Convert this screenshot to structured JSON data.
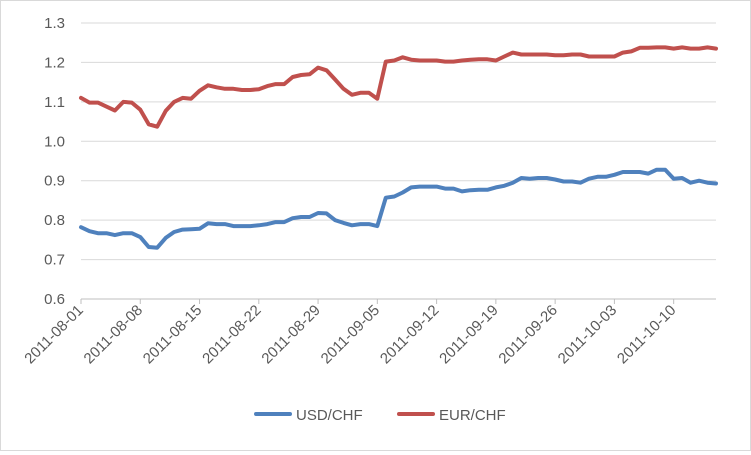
{
  "chart_data": {
    "type": "line",
    "title": "",
    "xlabel": "",
    "ylabel": "",
    "ylim": [
      0.6,
      1.3
    ],
    "yticks": [
      "0.6",
      "0.7",
      "0.8",
      "0.9",
      "1.0",
      "1.1",
      "1.2",
      "1.3"
    ],
    "xtick_labels": [
      "2011-08-01",
      "2011-08-08",
      "2011-08-15",
      "2011-08-22",
      "2011-08-29",
      "2011-09-05",
      "2011-09-12",
      "2011-09-19",
      "2011-09-26",
      "2011-10-03",
      "2011-10-10"
    ],
    "grid": "horizontal",
    "legend_position": "bottom",
    "series": [
      {
        "name": "USD/CHF",
        "color": "#4f81bd",
        "values": [
          0.782,
          0.772,
          0.767,
          0.767,
          0.762,
          0.767,
          0.767,
          0.757,
          0.732,
          0.73,
          0.755,
          0.77,
          0.776,
          0.777,
          0.778,
          0.792,
          0.79,
          0.79,
          0.785,
          0.785,
          0.785,
          0.787,
          0.79,
          0.795,
          0.795,
          0.805,
          0.808,
          0.808,
          0.818,
          0.817,
          0.8,
          0.793,
          0.787,
          0.79,
          0.79,
          0.785,
          0.857,
          0.86,
          0.87,
          0.883,
          0.885,
          0.885,
          0.885,
          0.88,
          0.88,
          0.873,
          0.876,
          0.877,
          0.877,
          0.883,
          0.887,
          0.895,
          0.907,
          0.905,
          0.907,
          0.907,
          0.903,
          0.898,
          0.898,
          0.895,
          0.905,
          0.91,
          0.91,
          0.915,
          0.922,
          0.922,
          0.922,
          0.918,
          0.928,
          0.928,
          0.905,
          0.907,
          0.895,
          0.9,
          0.895,
          0.893
        ]
      },
      {
        "name": "EUR/CHF",
        "color": "#c0504d",
        "values": [
          1.11,
          1.098,
          1.098,
          1.088,
          1.078,
          1.1,
          1.098,
          1.08,
          1.043,
          1.037,
          1.077,
          1.1,
          1.11,
          1.108,
          1.128,
          1.142,
          1.137,
          1.133,
          1.133,
          1.13,
          1.13,
          1.132,
          1.14,
          1.145,
          1.145,
          1.163,
          1.168,
          1.17,
          1.187,
          1.18,
          1.157,
          1.133,
          1.118,
          1.123,
          1.123,
          1.108,
          1.202,
          1.205,
          1.213,
          1.207,
          1.205,
          1.205,
          1.205,
          1.202,
          1.202,
          1.205,
          1.207,
          1.208,
          1.208,
          1.205,
          1.215,
          1.225,
          1.22,
          1.22,
          1.22,
          1.22,
          1.218,
          1.218,
          1.22,
          1.22,
          1.215,
          1.215,
          1.215,
          1.215,
          1.225,
          1.228,
          1.237,
          1.237,
          1.238,
          1.238,
          1.235,
          1.238,
          1.235,
          1.235,
          1.238,
          1.235
        ]
      }
    ]
  }
}
